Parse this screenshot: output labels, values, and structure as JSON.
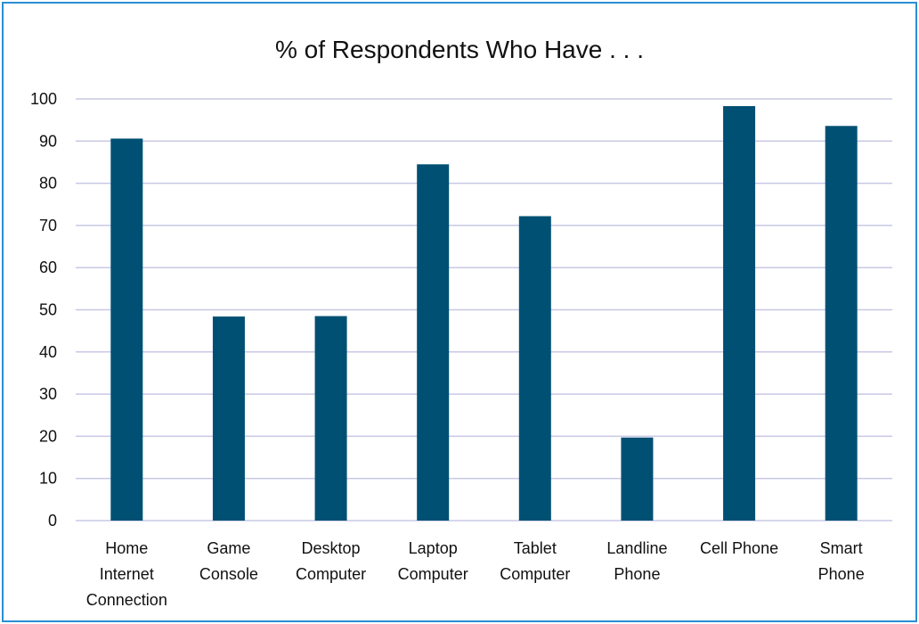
{
  "chart_data": {
    "type": "bar",
    "title": "% of Respondents Who Have . . .",
    "categories": [
      [
        "Home",
        "Internet",
        "Connection"
      ],
      [
        "Game",
        "Console"
      ],
      [
        "Desktop",
        "Computer"
      ],
      [
        "Laptop",
        "Computer"
      ],
      [
        "Tablet",
        "Computer"
      ],
      [
        "Landline",
        "Phone"
      ],
      [
        "Cell Phone"
      ],
      [
        "Smart",
        "Phone"
      ]
    ],
    "values": [
      90.6,
      48.4,
      48.5,
      84.5,
      72.2,
      19.7,
      98.3,
      93.6
    ],
    "ylim": [
      0,
      100
    ],
    "yticks": [
      0,
      10,
      20,
      30,
      40,
      50,
      60,
      70,
      80,
      90,
      100
    ],
    "grid": true,
    "colors": {
      "bar": "#005073",
      "grid": "#c8c8e6",
      "border": "#2a8fd4"
    }
  }
}
